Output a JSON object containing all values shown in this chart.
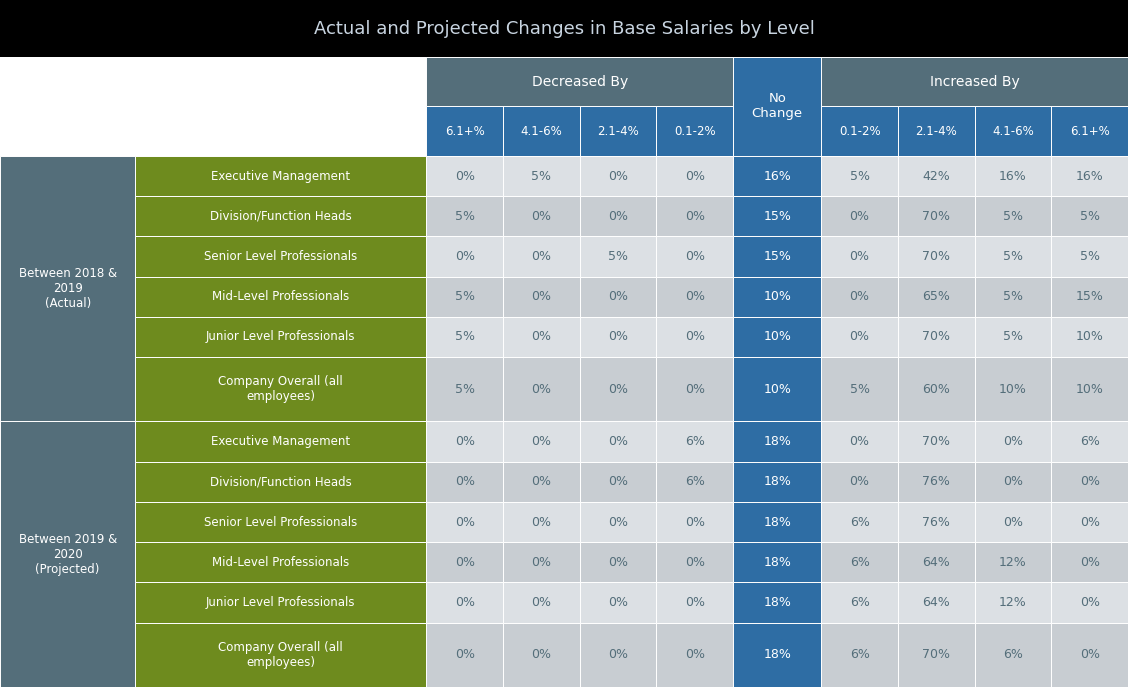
{
  "title": "Actual and Projected Changes in Base Salaries by Level",
  "title_bg": "#000000",
  "title_color": "#c8d4e0",
  "header1_bg": "#546e7a",
  "header2_bg": "#2e6da4",
  "header_text_color": "#ffffff",
  "col_headers_row2": [
    "6.1+%",
    "4.1-6%",
    "2.1-4%",
    "0.1-2%",
    "No\nChange",
    "0.1-2%",
    "2.1-4%",
    "4.1-6%",
    "6.1+%"
  ],
  "row_group_labels": [
    "Between 2018 &\n2019\n(Actual)",
    "Between 2019 &\n2020\n(Projected)"
  ],
  "row_group_bg": "#546e7a",
  "row_group_color": "#ffffff",
  "row_labels": [
    "Executive Management",
    "Division/Function Heads",
    "Senior Level Professionals",
    "Mid-Level Professionals",
    "Junior Level Professionals",
    "Company Overall (all\nemployees)",
    "Executive Management",
    "Division/Function Heads",
    "Senior Level Professionals",
    "Mid-Level Professionals",
    "Junior Level Professionals",
    "Company Overall (all\nemployees)"
  ],
  "row_label_bg": "#6e8b1e",
  "row_label_color": "#ffffff",
  "cell_bg_light": "#dce0e4",
  "cell_bg_dark": "#c8cdd2",
  "cell_text_color": "#546e7a",
  "no_change_col_bg": "#2e6da4",
  "no_change_col_text": "#ffffff",
  "data": [
    [
      "0%",
      "5%",
      "0%",
      "0%",
      "16%",
      "5%",
      "42%",
      "16%",
      "16%"
    ],
    [
      "5%",
      "0%",
      "0%",
      "0%",
      "15%",
      "0%",
      "70%",
      "5%",
      "5%"
    ],
    [
      "0%",
      "0%",
      "5%",
      "0%",
      "15%",
      "0%",
      "70%",
      "5%",
      "5%"
    ],
    [
      "5%",
      "0%",
      "0%",
      "0%",
      "10%",
      "0%",
      "65%",
      "5%",
      "15%"
    ],
    [
      "5%",
      "0%",
      "0%",
      "0%",
      "10%",
      "0%",
      "70%",
      "5%",
      "10%"
    ],
    [
      "5%",
      "0%",
      "0%",
      "0%",
      "10%",
      "5%",
      "60%",
      "10%",
      "10%"
    ],
    [
      "0%",
      "0%",
      "0%",
      "6%",
      "18%",
      "0%",
      "70%",
      "0%",
      "6%"
    ],
    [
      "0%",
      "0%",
      "0%",
      "6%",
      "18%",
      "0%",
      "76%",
      "0%",
      "0%"
    ],
    [
      "0%",
      "0%",
      "0%",
      "0%",
      "18%",
      "6%",
      "76%",
      "0%",
      "0%"
    ],
    [
      "0%",
      "0%",
      "0%",
      "0%",
      "18%",
      "6%",
      "64%",
      "12%",
      "0%"
    ],
    [
      "0%",
      "0%",
      "0%",
      "0%",
      "18%",
      "6%",
      "64%",
      "12%",
      "0%"
    ],
    [
      "0%",
      "0%",
      "0%",
      "0%",
      "18%",
      "6%",
      "70%",
      "6%",
      "0%"
    ]
  ]
}
